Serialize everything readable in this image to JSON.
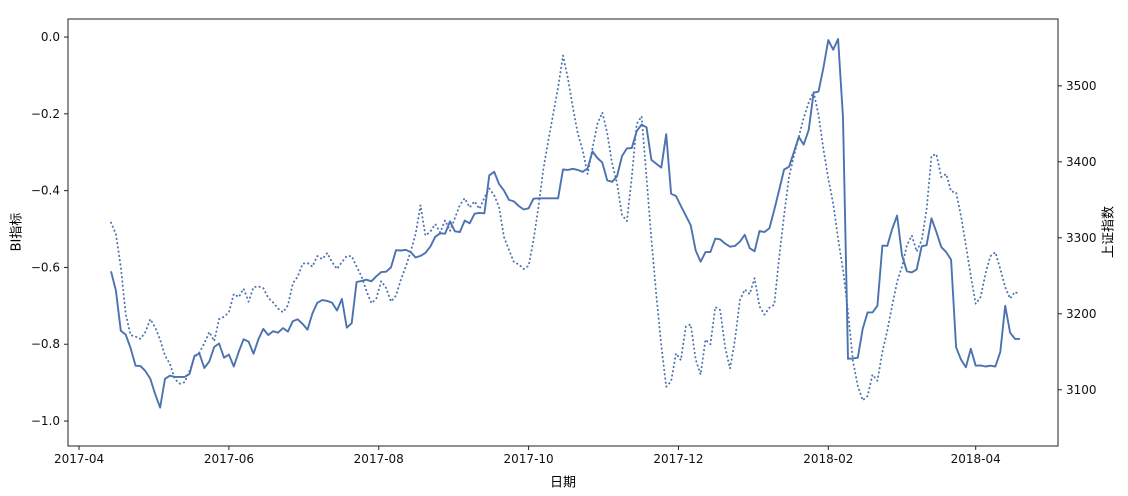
{
  "figure": {
    "background": "#ffffff",
    "xlabel": "日期",
    "left_axis": {
      "label": "BI指标",
      "tick_labels": [
        "0.0",
        "−0.2",
        "−0.4",
        "−0.6",
        "−0.8",
        "−1.0"
      ],
      "tick_values": [
        0.0,
        -0.2,
        -0.4,
        -0.6,
        -0.8,
        -1.0
      ],
      "range": [
        -1.065,
        0.047
      ]
    },
    "right_axis": {
      "label": "上证指数",
      "tick_labels": [
        "3500",
        "3400",
        "3300",
        "3200",
        "3100"
      ],
      "tick_values": [
        3500,
        3400,
        3300,
        3200,
        3100
      ],
      "range": [
        3026,
        3588
      ]
    },
    "x_axis": {
      "unit": "days since 2017-04-01",
      "tick_labels": [
        "2017-04",
        "2017-06",
        "2017-08",
        "2017-10",
        "2017-12",
        "2018-02",
        "2018-04"
      ],
      "tick_days": [
        0,
        61,
        122,
        183,
        244,
        305,
        365
      ],
      "range_days": [
        -4.5,
        398.5
      ]
    },
    "spine_color": "#222222",
    "tick_text_color": "#111111"
  },
  "chart_data": {
    "type": "line",
    "title": "",
    "xlabel": "日期",
    "legend": "none",
    "grid": false,
    "series": [
      {
        "name": "BI指标",
        "axis": "left",
        "line_style": "solid",
        "color": "#4c72b0",
        "x_start_day": 13,
        "x_step_days": 2,
        "values": [
          -0.61,
          -0.66,
          -0.765,
          -0.775,
          -0.81,
          -0.856,
          -0.857,
          -0.87,
          -0.89,
          -0.93,
          -0.965,
          -0.89,
          -0.882,
          -0.885,
          -0.885,
          -0.885,
          -0.877,
          -0.83,
          -0.824,
          -0.862,
          -0.845,
          -0.807,
          -0.798,
          -0.835,
          -0.827,
          -0.858,
          -0.82,
          -0.787,
          -0.793,
          -0.825,
          -0.787,
          -0.76,
          -0.776,
          -0.766,
          -0.77,
          -0.758,
          -0.767,
          -0.74,
          -0.735,
          -0.747,
          -0.762,
          -0.72,
          -0.692,
          -0.685,
          -0.687,
          -0.692,
          -0.712,
          -0.682,
          -0.757,
          -0.745,
          -0.638,
          -0.635,
          -0.632,
          -0.636,
          -0.623,
          -0.612,
          -0.611,
          -0.6,
          -0.555,
          -0.556,
          -0.554,
          -0.56,
          -0.574,
          -0.57,
          -0.562,
          -0.546,
          -0.52,
          -0.511,
          -0.512,
          -0.48,
          -0.506,
          -0.508,
          -0.478,
          -0.485,
          -0.46,
          -0.458,
          -0.459,
          -0.36,
          -0.351,
          -0.383,
          -0.4,
          -0.424,
          -0.428,
          -0.44,
          -0.449,
          -0.446,
          -0.421,
          -0.42,
          -0.42,
          -0.42,
          -0.42,
          -0.42,
          -0.345,
          -0.346,
          -0.343,
          -0.346,
          -0.351,
          -0.342,
          -0.298,
          -0.315,
          -0.327,
          -0.373,
          -0.377,
          -0.363,
          -0.31,
          -0.29,
          -0.289,
          -0.245,
          -0.228,
          -0.235,
          -0.32,
          -0.33,
          -0.34,
          -0.253,
          -0.408,
          -0.414,
          -0.44,
          -0.465,
          -0.49,
          -0.556,
          -0.585,
          -0.56,
          -0.56,
          -0.525,
          -0.527,
          -0.538,
          -0.546,
          -0.544,
          -0.533,
          -0.515,
          -0.55,
          -0.558,
          -0.505,
          -0.508,
          -0.498,
          -0.45,
          -0.398,
          -0.345,
          -0.338,
          -0.3,
          -0.26,
          -0.28,
          -0.242,
          -0.145,
          -0.142,
          -0.08,
          -0.008,
          -0.033,
          -0.005,
          -0.21,
          -0.838,
          -0.837,
          -0.835,
          -0.76,
          -0.717,
          -0.717,
          -0.7,
          -0.543,
          -0.544,
          -0.5,
          -0.465,
          -0.568,
          -0.61,
          -0.613,
          -0.605,
          -0.545,
          -0.542,
          -0.472,
          -0.508,
          -0.547,
          -0.56,
          -0.58,
          -0.808,
          -0.84,
          -0.86,
          -0.812,
          -0.856,
          -0.855,
          -0.858,
          -0.856,
          -0.858,
          -0.82,
          -0.7,
          -0.77,
          -0.786,
          -0.786
        ]
      },
      {
        "name": "上证指数",
        "axis": "right",
        "line_style": "dotted",
        "color": "#4c72b0",
        "x_start_day": 13,
        "x_step_days": 2,
        "values": [
          3320,
          3305,
          3262,
          3200,
          3172,
          3170,
          3167,
          3176,
          3193,
          3182,
          3166,
          3145,
          3134,
          3114,
          3108,
          3110,
          3125,
          3143,
          3149,
          3161,
          3176,
          3164,
          3193,
          3196,
          3202,
          3226,
          3222,
          3233,
          3216,
          3235,
          3236,
          3234,
          3221,
          3215,
          3207,
          3202,
          3211,
          3240,
          3249,
          3266,
          3267,
          3262,
          3276,
          3272,
          3280,
          3268,
          3259,
          3268,
          3276,
          3276,
          3262,
          3249,
          3230,
          3214,
          3220,
          3243,
          3234,
          3216,
          3224,
          3245,
          3262,
          3282,
          3305,
          3343,
          3303,
          3308,
          3318,
          3307,
          3323,
          3309,
          3326,
          3343,
          3352,
          3340,
          3348,
          3338,
          3353,
          3365,
          3356,
          3340,
          3301,
          3284,
          3268,
          3265,
          3259,
          3263,
          3297,
          3340,
          3390,
          3428,
          3463,
          3498,
          3540,
          3510,
          3472,
          3438,
          3415,
          3384,
          3418,
          3450,
          3465,
          3438,
          3398,
          3372,
          3330,
          3322,
          3380,
          3450,
          3460,
          3380,
          3298,
          3225,
          3158,
          3104,
          3111,
          3148,
          3139,
          3183,
          3186,
          3140,
          3120,
          3166,
          3160,
          3209,
          3205,
          3156,
          3128,
          3166,
          3218,
          3232,
          3226,
          3247,
          3210,
          3199,
          3208,
          3212,
          3275,
          3330,
          3380,
          3408,
          3433,
          3458,
          3478,
          3492,
          3462,
          3417,
          3378,
          3345,
          3299,
          3258,
          3203,
          3138,
          3105,
          3086,
          3092,
          3120,
          3112,
          3150,
          3178,
          3211,
          3242,
          3262,
          3290,
          3303,
          3282,
          3297,
          3337,
          3408,
          3410,
          3380,
          3384,
          3361,
          3360,
          3329,
          3290,
          3250,
          3213,
          3222,
          3253,
          3276,
          3281,
          3259,
          3235,
          3220,
          3229,
          3225
        ]
      }
    ]
  }
}
